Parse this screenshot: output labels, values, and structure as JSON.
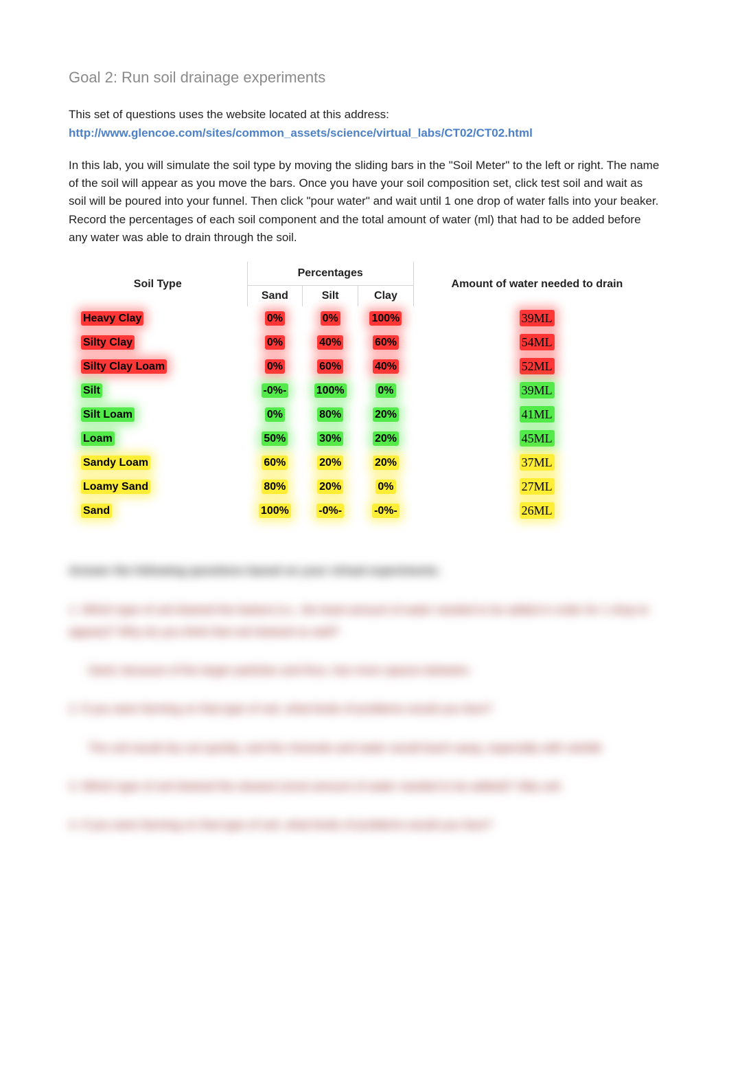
{
  "heading": "Goal 2: Run soil drainage experiments",
  "intro1": "This set of questions uses the website located at this address:",
  "link": "http://www.glencoe.com/sites/common_assets/science/virtual_labs/CT02/CT02.html",
  "intro2": "In this lab, you will simulate the soil type by moving the sliding bars in the \"Soil Meter\" to the left or right. The name of the soil will appear as you move the bars. Once you have your soil composition set, click test soil and wait as soil will be poured into your funnel. Then click \"pour water\" and wait until 1 one drop of water falls into your beaker. Record the percentages of each soil component and the total amount of water (ml) that had to be added before any water was able to drain through the soil.",
  "table": {
    "type": "table",
    "columns": {
      "soil_type": "Soil Type",
      "percent_group": "Percentages",
      "sand": "Sand",
      "silt": "Silt",
      "clay": "Clay",
      "water": "Amount of water needed to drain"
    },
    "highlight_colors": {
      "red": "#ff1414",
      "green": "#28e61e",
      "yellow": "#ffeb14"
    },
    "rows": [
      {
        "name": "Heavy Clay",
        "color": "red",
        "sand": "0%",
        "silt": "0%",
        "clay": "100%",
        "water": "39ML"
      },
      {
        "name": "Silty Clay",
        "color": "red",
        "sand": "0%",
        "silt": "40%",
        "clay": "60%",
        "water": "54ML"
      },
      {
        "name": "Silty Clay Loam",
        "color": "red",
        "sand": "0%",
        "silt": "60%",
        "clay": "40%",
        "water": "52ML"
      },
      {
        "name": "Silt",
        "color": "green",
        "sand": "-0%-",
        "silt": "100%",
        "clay": "0%",
        "water": "39ML"
      },
      {
        "name": "Silt Loam",
        "color": "green",
        "sand": "0%",
        "silt": "80%",
        "clay": "20%",
        "water": "41ML"
      },
      {
        "name": "Loam",
        "color": "green",
        "sand": "50%",
        "silt": "30%",
        "clay": "20%",
        "water": "45ML"
      },
      {
        "name": "Sandy Loam",
        "color": "yellow",
        "sand": "60%",
        "silt": "20%",
        "clay": "20%",
        "water": "37ML"
      },
      {
        "name": "Loamy Sand",
        "color": "yellow",
        "sand": "80%",
        "silt": "20%",
        "clay": "0%",
        "water": "27ML"
      },
      {
        "name": "Sand",
        "color": "yellow",
        "sand": "100%",
        "silt": "-0%-",
        "clay": "-0%-",
        "water": "26ML"
      }
    ]
  },
  "blurred": {
    "lead": "Answer the following questions based on your virtual experiments.",
    "q1": "1.  Which type of soil drained the fastest (i.e., the least amount of water needed to be added in order for 1 drop to appear)? Why do you think that soil drained so well?",
    "a1": "Sand, because of the larger particles and thus, has more spaces between.",
    "q2": "2.  If you were farming on that type of soil, what kinds of problems would you face?",
    "a2": "The soil would dry out quickly, and the minerals and water would leach away, especially with rainfall.",
    "q3": "3.  Which type of soil drained the slowest (most amount of water needed to be added)? Silty soil.",
    "q4": "4.  If you were farming on that type of soil, what kinds of problems would you face?"
  }
}
